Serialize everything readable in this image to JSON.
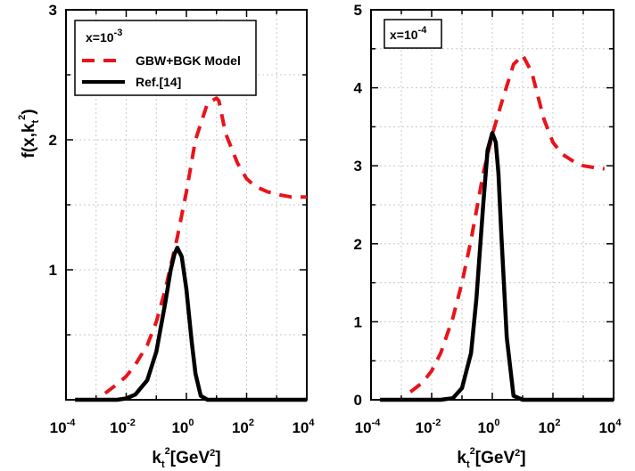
{
  "chart_data": [
    {
      "type": "line",
      "panel": "left",
      "xscale": "log",
      "xlim": [
        0.0001,
        10000
      ],
      "ylim": [
        0,
        3
      ],
      "x_ticks": [
        {
          "base": "10",
          "exp": "-4"
        },
        {
          "base": "10",
          "exp": "-2"
        },
        {
          "base": "10",
          "exp": "0"
        },
        {
          "base": "10",
          "exp": "2"
        },
        {
          "base": "10",
          "exp": "4"
        }
      ],
      "y_ticks": [
        "1",
        "2",
        "3"
      ],
      "y_tick_values": [
        1,
        2,
        3
      ],
      "ylabel": {
        "main": "f(x,k",
        "sub": "t",
        "sup": "2",
        "close": ")"
      },
      "xlabel": {
        "main": "k",
        "sub": "t",
        "sup": "2",
        "rest": "[GeV",
        "rest_sup": "2",
        "close": "]"
      },
      "annotation": {
        "base": "x=10",
        "sup": "-3"
      },
      "legend": [
        "GBW+BGK Model",
        "Ref.[14]"
      ],
      "grid": true,
      "series": [
        {
          "name": "GBW+BGK Model",
          "color": "#e8141b",
          "style": "dashed",
          "x": [
            0.002,
            0.005,
            0.01,
            0.02,
            0.05,
            0.1,
            0.2,
            0.5,
            1,
            2,
            5,
            10,
            12,
            20,
            50,
            100,
            200,
            500,
            1000,
            3000,
            10000
          ],
          "y": [
            0.05,
            0.12,
            0.18,
            0.27,
            0.42,
            0.6,
            0.85,
            1.25,
            1.6,
            2.0,
            2.28,
            2.32,
            2.3,
            2.05,
            1.82,
            1.7,
            1.64,
            1.6,
            1.58,
            1.56,
            1.56
          ]
        },
        {
          "name": "Ref.[14]",
          "color": "#000000",
          "style": "solid",
          "x": [
            0.0002,
            0.005,
            0.01,
            0.02,
            0.05,
            0.1,
            0.2,
            0.3,
            0.4,
            0.5,
            0.7,
            1,
            1.5,
            2,
            3,
            5,
            10000
          ],
          "y": [
            0,
            0,
            0.01,
            0.04,
            0.15,
            0.37,
            0.75,
            1.0,
            1.12,
            1.17,
            1.1,
            0.85,
            0.45,
            0.2,
            0.03,
            0,
            0
          ]
        }
      ]
    },
    {
      "type": "line",
      "panel": "right",
      "xscale": "log",
      "xlim": [
        0.0001,
        10000
      ],
      "ylim": [
        0,
        5
      ],
      "x_ticks": [
        {
          "base": "10",
          "exp": "-4"
        },
        {
          "base": "10",
          "exp": "-2"
        },
        {
          "base": "10",
          "exp": "0"
        },
        {
          "base": "10",
          "exp": "2"
        },
        {
          "base": "10",
          "exp": "4"
        }
      ],
      "y_ticks": [
        "0",
        "1",
        "2",
        "3",
        "4",
        "5"
      ],
      "y_tick_values": [
        0,
        1,
        2,
        3,
        4,
        5
      ],
      "xlabel": {
        "main": "k",
        "sub": "t",
        "sup": "2",
        "rest": "[GeV",
        "rest_sup": "2",
        "close": "]"
      },
      "annotation": {
        "base": "x=10",
        "sup": "-4"
      },
      "grid": true,
      "series": [
        {
          "name": "GBW+BGK Model",
          "color": "#e8141b",
          "style": "dashed",
          "x": [
            0.002,
            0.005,
            0.01,
            0.02,
            0.05,
            0.1,
            0.2,
            0.5,
            1,
            2,
            5,
            10,
            20,
            50,
            100,
            200,
            500,
            1000,
            3000,
            5000
          ],
          "y": [
            0.1,
            0.22,
            0.37,
            0.6,
            1.05,
            1.5,
            2.05,
            2.9,
            3.4,
            3.8,
            4.3,
            4.42,
            4.2,
            3.6,
            3.3,
            3.15,
            3.05,
            3.0,
            2.97,
            2.96
          ]
        },
        {
          "name": "Ref.[14]",
          "color": "#000000",
          "style": "solid",
          "x": [
            0.0002,
            0.02,
            0.05,
            0.1,
            0.2,
            0.3,
            0.5,
            0.7,
            1,
            1.3,
            1.6,
            2,
            3,
            5,
            10,
            10000
          ],
          "y": [
            0,
            0,
            0.02,
            0.15,
            0.6,
            1.3,
            2.5,
            3.2,
            3.42,
            3.3,
            2.9,
            2.1,
            0.8,
            0.05,
            0,
            0
          ]
        }
      ]
    }
  ]
}
